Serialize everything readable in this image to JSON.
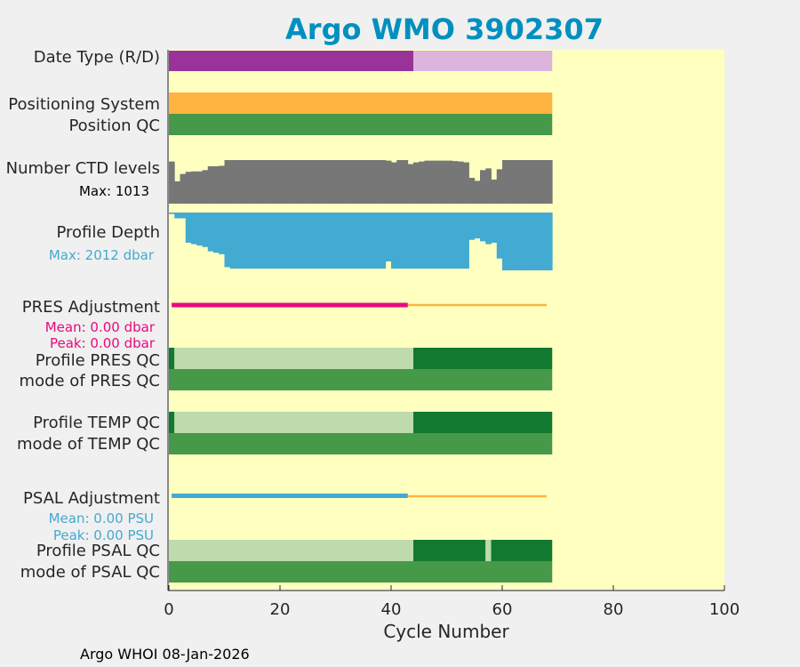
{
  "chart_data": {
    "type": "float_status_bars",
    "title": "Argo WMO 3902307",
    "xlabel": "Cycle Number",
    "xlim": [
      0,
      100
    ],
    "xticks": [
      0,
      20,
      40,
      60,
      80,
      100
    ],
    "footer": "Argo WHOI 08-Jan-2026",
    "colors": {
      "background": "#ffffc0",
      "title": "#0090c0",
      "dmode_delayed": "#993399",
      "dmode_realtime": "#dbb5db",
      "positioning": "#ffb340",
      "qc_good": "#47994a",
      "qc_dark": "#117a2f",
      "qc_light": "#bddbad",
      "ctd": "#777777",
      "depth": "#43aad1",
      "pres_adj": "#e8097e",
      "psal_adj": "#43aad1",
      "adj_pending": "#ffb340"
    },
    "rows": {
      "data_type": {
        "label": "Date Type (R/D)",
        "segments": [
          {
            "from": 0,
            "to": 44,
            "state": "D"
          },
          {
            "from": 44,
            "to": 69,
            "state": "R"
          }
        ]
      },
      "positioning": {
        "label": "Positioning System",
        "from": 0,
        "to": 69
      },
      "position_qc": {
        "label": "Position QC",
        "from": 0,
        "to": 69
      },
      "ctd_levels": {
        "label": "Number CTD levels",
        "max_label": "Max: 1013",
        "max": 1013,
        "values": [
          980,
          520,
          690,
          740,
          750,
          750,
          780,
          870,
          870,
          880,
          1013,
          1013,
          1013,
          1013,
          1013,
          1013,
          1013,
          1013,
          1013,
          1013,
          1013,
          1013,
          1013,
          1013,
          1013,
          1013,
          1013,
          1013,
          1013,
          1013,
          1013,
          1013,
          1013,
          1013,
          1013,
          1013,
          1013,
          1013,
          1013,
          1000,
          960,
          1013,
          1013,
          920,
          960,
          980,
          1000,
          1000,
          1000,
          1000,
          1000,
          990,
          980,
          960,
          600,
          530,
          780,
          820,
          560,
          800,
          1013,
          1013,
          1013,
          1013,
          1013,
          1013,
          1013,
          1013,
          1013
        ]
      },
      "profile_depth": {
        "label": "Profile Depth",
        "max_label": "Max: 2012 dbar",
        "max": 2012,
        "values": [
          50,
          200,
          200,
          1050,
          1100,
          1150,
          1200,
          1350,
          1400,
          1450,
          1900,
          1950,
          1950,
          1950,
          1950,
          1950,
          1950,
          1950,
          1950,
          1950,
          1950,
          1950,
          1950,
          1950,
          1950,
          1950,
          1950,
          1950,
          1950,
          1950,
          1950,
          1950,
          1950,
          1950,
          1950,
          1950,
          1950,
          1950,
          1950,
          1700,
          1950,
          1950,
          1950,
          1950,
          1950,
          1950,
          1950,
          1950,
          1950,
          1950,
          1950,
          1950,
          1950,
          1950,
          950,
          900,
          1000,
          1100,
          1050,
          1600,
          2012,
          2012,
          2012,
          2012,
          2012,
          2012,
          2012,
          2012,
          2012
        ]
      },
      "pres_adj": {
        "label": "PRES Adjustment",
        "mean_label": "Mean: 0.00 dbar",
        "peak_label": "Peak: 0.00 dbar",
        "adjusted_to": 43,
        "pending_to": 68
      },
      "pres_qc": {
        "label": "Profile PRES QC",
        "mode_label": "mode of PRES QC",
        "segments": [
          {
            "from": 0,
            "to": 1,
            "shade": "dark"
          },
          {
            "from": 1,
            "to": 44,
            "shade": "light"
          },
          {
            "from": 44,
            "to": 69,
            "shade": "dark"
          }
        ]
      },
      "temp_qc": {
        "label": "Profile TEMP QC",
        "mode_label": "mode of TEMP QC",
        "segments": [
          {
            "from": 0,
            "to": 1,
            "shade": "dark"
          },
          {
            "from": 1,
            "to": 44,
            "shade": "light"
          },
          {
            "from": 44,
            "to": 69,
            "shade": "dark"
          }
        ]
      },
      "psal_adj": {
        "label": "PSAL Adjustment",
        "mean_label": "Mean: 0.00 PSU",
        "peak_label": "Peak: 0.00 PSU",
        "adjusted_to": 43,
        "pending_to": 68
      },
      "psal_qc": {
        "label": "Profile PSAL QC",
        "mode_label": "mode of PSAL QC",
        "segments": [
          {
            "from": 0,
            "to": 44,
            "shade": "light"
          },
          {
            "from": 44,
            "to": 57,
            "shade": "dark"
          },
          {
            "from": 57,
            "to": 58,
            "shade": "light"
          },
          {
            "from": 58,
            "to": 69,
            "shade": "dark"
          }
        ]
      }
    }
  }
}
